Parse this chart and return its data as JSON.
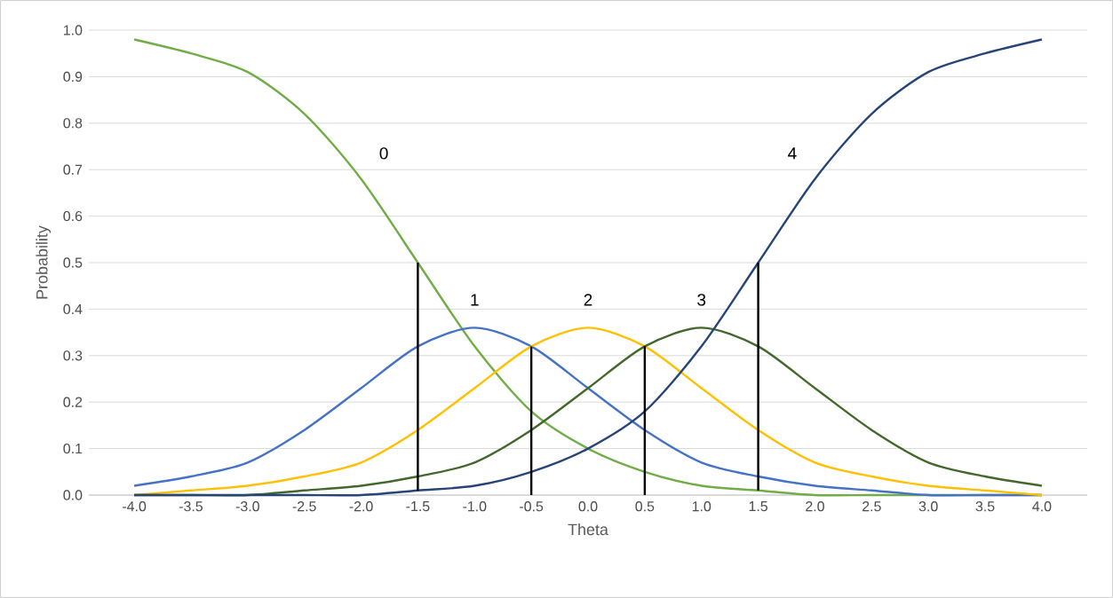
{
  "chart_data": {
    "type": "line",
    "xlabel": "Theta",
    "ylabel": "Probability",
    "xlim": [
      -4.4,
      4.4
    ],
    "ylim": [
      0,
      1
    ],
    "xticks": [
      {
        "value": -4,
        "label": "-4.0"
      },
      {
        "value": -3.5,
        "label": "-3.5"
      },
      {
        "value": -3,
        "label": "-3.0"
      },
      {
        "value": -2.5,
        "label": "-2.5"
      },
      {
        "value": -2,
        "label": "-2.0"
      },
      {
        "value": -1.5,
        "label": "-1.5"
      },
      {
        "value": -1,
        "label": "-1.0"
      },
      {
        "value": -0.5,
        "label": "-0.5"
      },
      {
        "value": 0,
        "label": "0.0"
      },
      {
        "value": 0.5,
        "label": "0.5"
      },
      {
        "value": 1,
        "label": "1.0"
      },
      {
        "value": 1.5,
        "label": "1.5"
      },
      {
        "value": 2,
        "label": "2.0"
      },
      {
        "value": 2.5,
        "label": "2.5"
      },
      {
        "value": 3,
        "label": "3.0"
      },
      {
        "value": 3.5,
        "label": "3.5"
      },
      {
        "value": 4,
        "label": "4.0"
      }
    ],
    "yticks": [
      {
        "value": 0,
        "label": "0.0"
      },
      {
        "value": 0.1,
        "label": "0.1"
      },
      {
        "value": 0.2,
        "label": "0.2"
      },
      {
        "value": 0.3,
        "label": "0.3"
      },
      {
        "value": 0.4,
        "label": "0.4"
      },
      {
        "value": 0.5,
        "label": "0.5"
      },
      {
        "value": 0.6,
        "label": "0.6"
      },
      {
        "value": 0.7,
        "label": "0.7"
      },
      {
        "value": 0.8,
        "label": "0.8"
      },
      {
        "value": 0.9,
        "label": "0.9"
      },
      {
        "value": 1,
        "label": "1.0"
      }
    ],
    "grid": "y",
    "x": [
      -4,
      -3.5,
      -3,
      -2.5,
      -2,
      -1.5,
      -1,
      -0.5,
      0,
      0.5,
      1,
      1.5,
      2,
      2.5,
      3,
      3.5,
      4
    ],
    "series": [
      {
        "name": "0",
        "color": "#70ad47",
        "values": [
          0.98,
          0.95,
          0.91,
          0.82,
          0.68,
          0.5,
          0.32,
          0.18,
          0.1,
          0.05,
          0.02,
          0.01,
          0.0,
          0.0,
          0.0,
          0.0,
          0.0
        ]
      },
      {
        "name": "1",
        "color": "#4472c4",
        "values": [
          0.02,
          0.04,
          0.07,
          0.14,
          0.23,
          0.32,
          0.36,
          0.32,
          0.23,
          0.14,
          0.07,
          0.04,
          0.02,
          0.01,
          0.0,
          0.0,
          0.0
        ]
      },
      {
        "name": "2",
        "color": "#ffc000",
        "values": [
          0.0,
          0.01,
          0.02,
          0.04,
          0.07,
          0.14,
          0.23,
          0.32,
          0.36,
          0.32,
          0.23,
          0.14,
          0.07,
          0.04,
          0.02,
          0.01,
          0.0
        ]
      },
      {
        "name": "3",
        "color": "#43682b",
        "values": [
          0.0,
          0.0,
          0.0,
          0.01,
          0.02,
          0.04,
          0.07,
          0.14,
          0.23,
          0.32,
          0.36,
          0.32,
          0.23,
          0.14,
          0.07,
          0.04,
          0.02
        ]
      },
      {
        "name": "4",
        "color": "#264478",
        "values": [
          0.0,
          0.0,
          0.0,
          0.0,
          0.0,
          0.01,
          0.02,
          0.05,
          0.1,
          0.18,
          0.32,
          0.5,
          0.68,
          0.82,
          0.91,
          0.95,
          0.98
        ]
      },
      {
        "color": "#000000",
        "x": [
          -1.5,
          -1.5
        ],
        "values": [
          0.01,
          0.5
        ]
      },
      {
        "color": "#000000",
        "x": [
          -0.5,
          -0.5
        ],
        "values": [
          0.0,
          0.32
        ]
      },
      {
        "color": "#000000",
        "x": [
          0.5,
          0.5
        ],
        "values": [
          0.0,
          0.32
        ]
      },
      {
        "color": "#000000",
        "x": [
          1.5,
          1.5
        ],
        "values": [
          0.01,
          0.5
        ]
      }
    ]
  }
}
